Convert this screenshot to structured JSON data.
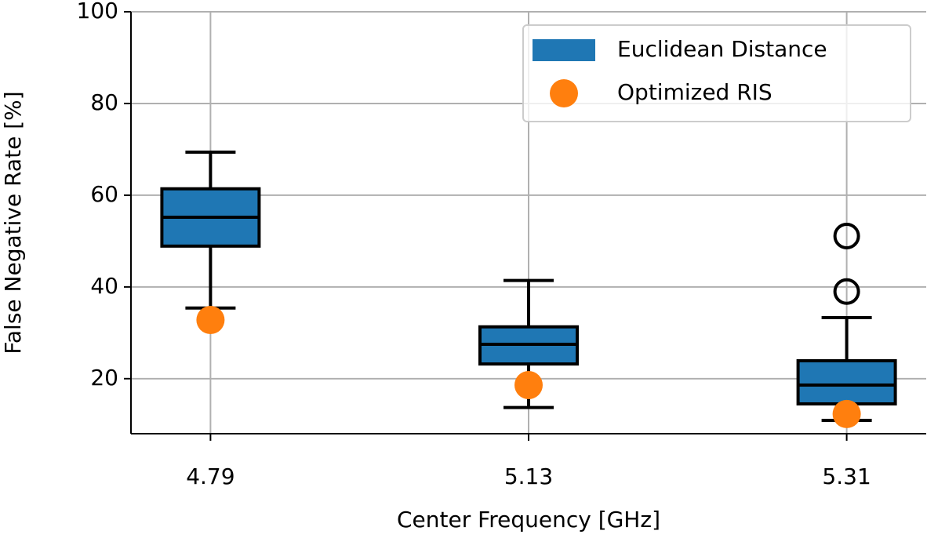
{
  "chart_data": {
    "type": "box",
    "xlabel": "Center Frequency [GHz]",
    "ylabel": "False Negative Rate [%]",
    "categories": [
      "4.79",
      "5.13",
      "5.31"
    ],
    "ylim": [
      8,
      100
    ],
    "yticks": [
      20,
      40,
      60,
      80,
      100
    ],
    "grid": true,
    "legend": "upper right",
    "series": [
      {
        "name": "Euclidean Distance",
        "color": "#1f77b4",
        "kind": "box",
        "boxes": [
          {
            "min": 35.4,
            "q1": 48.9,
            "median": 55.2,
            "q3": 61.4,
            "max": 69.4,
            "outliers": []
          },
          {
            "min": 13.7,
            "q1": 23.2,
            "median": 27.5,
            "q3": 31.3,
            "max": 41.4,
            "outliers": []
          },
          {
            "min": 10.9,
            "q1": 14.5,
            "median": 18.6,
            "q3": 23.9,
            "max": 33.3,
            "outliers": [
              51.1,
              39.0
            ]
          }
        ]
      },
      {
        "name": "Optimized RIS",
        "color": "#ff7f0e",
        "kind": "point",
        "values": [
          32.8,
          18.6,
          12.3
        ]
      }
    ]
  }
}
